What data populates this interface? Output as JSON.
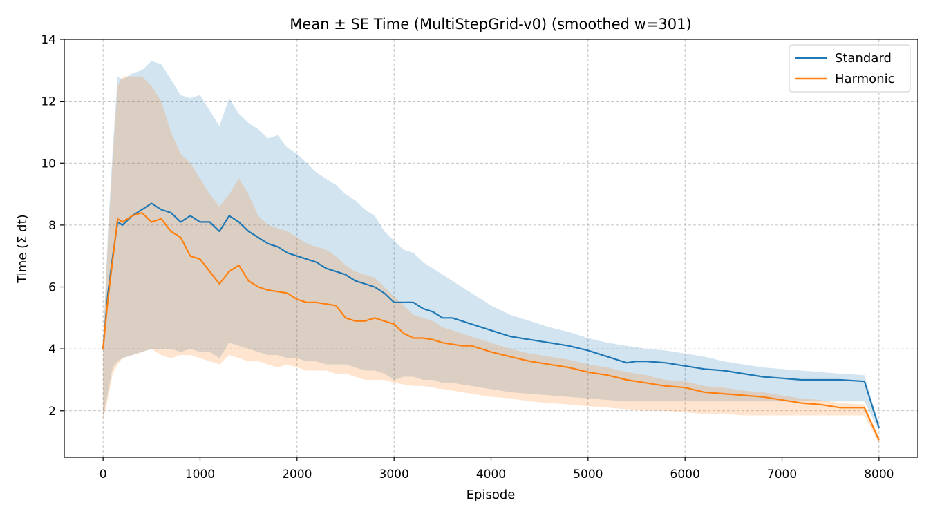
{
  "chart_data": {
    "type": "line",
    "title": "Mean ± SE Time (MultiStepGrid-v0) (smoothed w=301)",
    "xlabel": "Episode",
    "ylabel": "Time (Σ dt)",
    "xlim": [
      -400,
      8400
    ],
    "ylim": [
      0.5,
      14
    ],
    "xticks": [
      0,
      1000,
      2000,
      3000,
      4000,
      5000,
      6000,
      7000,
      8000
    ],
    "yticks": [
      2,
      4,
      6,
      8,
      10,
      12,
      14
    ],
    "grid": true,
    "legend_position": "top-right",
    "series": [
      {
        "name": "Standard",
        "color": "#1f77b4",
        "band_color": "#1f77b4",
        "x": [
          0,
          50,
          100,
          150,
          200,
          300,
          400,
          500,
          600,
          700,
          800,
          900,
          1000,
          1100,
          1200,
          1300,
          1400,
          1500,
          1600,
          1700,
          1800,
          1900,
          2000,
          2100,
          2200,
          2300,
          2400,
          2500,
          2600,
          2700,
          2800,
          2900,
          3000,
          3100,
          3200,
          3300,
          3400,
          3500,
          3600,
          3700,
          3800,
          3900,
          4000,
          4200,
          4400,
          4600,
          4800,
          5000,
          5200,
          5400,
          5500,
          5600,
          5800,
          6000,
          6200,
          6400,
          6600,
          6800,
          7000,
          7200,
          7400,
          7600,
          7850,
          8000
        ],
        "mean": [
          4.0,
          5.8,
          7.0,
          8.1,
          8.0,
          8.3,
          8.5,
          8.7,
          8.5,
          8.4,
          8.1,
          8.3,
          8.1,
          8.1,
          7.8,
          8.3,
          8.1,
          7.8,
          7.6,
          7.4,
          7.3,
          7.1,
          7.0,
          6.9,
          6.8,
          6.6,
          6.5,
          6.4,
          6.2,
          6.1,
          6.0,
          5.8,
          5.5,
          5.5,
          5.5,
          5.3,
          5.2,
          5.0,
          5.0,
          4.9,
          4.8,
          4.7,
          4.6,
          4.4,
          4.3,
          4.2,
          4.1,
          3.95,
          3.75,
          3.55,
          3.6,
          3.6,
          3.55,
          3.45,
          3.35,
          3.3,
          3.2,
          3.1,
          3.05,
          3.0,
          3.0,
          3.0,
          2.95,
          1.45
        ],
        "upper": [
          4.2,
          7.8,
          10.5,
          12.8,
          12.7,
          12.9,
          13.0,
          13.3,
          13.2,
          12.7,
          12.2,
          12.1,
          12.2,
          11.7,
          11.2,
          12.1,
          11.6,
          11.3,
          11.1,
          10.8,
          10.9,
          10.5,
          10.3,
          10.0,
          9.7,
          9.5,
          9.3,
          9.0,
          8.8,
          8.5,
          8.3,
          7.8,
          7.5,
          7.2,
          7.1,
          6.8,
          6.6,
          6.4,
          6.2,
          6.0,
          5.8,
          5.6,
          5.4,
          5.1,
          4.9,
          4.7,
          4.55,
          4.35,
          4.2,
          4.1,
          4.05,
          4.0,
          3.95,
          3.85,
          3.75,
          3.6,
          3.5,
          3.4,
          3.35,
          3.3,
          3.25,
          3.2,
          3.15,
          1.55
        ],
        "lower": [
          1.8,
          2.6,
          3.4,
          3.6,
          3.7,
          3.8,
          3.9,
          4.0,
          4.0,
          4.0,
          3.9,
          4.0,
          3.9,
          3.9,
          3.7,
          4.2,
          4.1,
          4.0,
          3.9,
          3.8,
          3.8,
          3.7,
          3.7,
          3.6,
          3.6,
          3.5,
          3.5,
          3.5,
          3.4,
          3.3,
          3.3,
          3.2,
          3.0,
          3.1,
          3.1,
          3.0,
          3.0,
          2.9,
          2.9,
          2.85,
          2.8,
          2.75,
          2.7,
          2.6,
          2.55,
          2.5,
          2.45,
          2.4,
          2.35,
          2.3,
          2.3,
          2.3,
          2.3,
          2.3,
          2.3,
          2.3,
          2.3,
          2.3,
          2.3,
          2.3,
          2.3,
          2.3,
          2.3,
          1.35
        ]
      },
      {
        "name": "Harmonic",
        "color": "#ff7f0e",
        "band_color": "#ff7f0e",
        "x": [
          0,
          50,
          100,
          150,
          200,
          300,
          400,
          500,
          600,
          700,
          800,
          900,
          1000,
          1100,
          1200,
          1300,
          1400,
          1500,
          1600,
          1700,
          1800,
          1900,
          2000,
          2100,
          2200,
          2300,
          2400,
          2500,
          2600,
          2700,
          2800,
          2900,
          3000,
          3100,
          3200,
          3300,
          3400,
          3500,
          3600,
          3700,
          3800,
          3900,
          4000,
          4200,
          4400,
          4600,
          4800,
          5000,
          5200,
          5400,
          5600,
          5800,
          6000,
          6200,
          6400,
          6600,
          6800,
          7000,
          7200,
          7400,
          7600,
          7850,
          8000
        ],
        "mean": [
          4.0,
          5.6,
          6.9,
          8.2,
          8.1,
          8.3,
          8.4,
          8.1,
          8.2,
          7.8,
          7.6,
          7.0,
          6.9,
          6.5,
          6.1,
          6.5,
          6.7,
          6.2,
          6.0,
          5.9,
          5.85,
          5.8,
          5.6,
          5.5,
          5.5,
          5.45,
          5.4,
          5.0,
          4.9,
          4.9,
          5.0,
          4.9,
          4.8,
          4.5,
          4.35,
          4.35,
          4.3,
          4.2,
          4.15,
          4.1,
          4.1,
          4.0,
          3.9,
          3.75,
          3.6,
          3.5,
          3.4,
          3.25,
          3.15,
          3.0,
          2.9,
          2.8,
          2.75,
          2.6,
          2.55,
          2.5,
          2.45,
          2.35,
          2.25,
          2.2,
          2.1,
          2.1,
          1.05
        ],
        "upper": [
          4.1,
          7.5,
          10.2,
          12.5,
          12.8,
          12.8,
          12.8,
          12.5,
          12.0,
          11.0,
          10.3,
          10.0,
          9.5,
          9.0,
          8.6,
          9.0,
          9.5,
          9.0,
          8.3,
          8.0,
          7.9,
          7.8,
          7.6,
          7.4,
          7.3,
          7.2,
          7.0,
          6.7,
          6.5,
          6.4,
          6.3,
          6.0,
          5.7,
          5.4,
          5.1,
          5.0,
          4.9,
          4.7,
          4.6,
          4.5,
          4.4,
          4.3,
          4.2,
          4.0,
          3.85,
          3.75,
          3.65,
          3.5,
          3.4,
          3.25,
          3.15,
          3.0,
          2.95,
          2.8,
          2.75,
          2.65,
          2.6,
          2.5,
          2.4,
          2.35,
          2.25,
          2.2,
          1.15
        ],
        "lower": [
          1.7,
          2.4,
          3.2,
          3.5,
          3.7,
          3.8,
          3.9,
          4.0,
          3.8,
          3.7,
          3.8,
          3.8,
          3.7,
          3.6,
          3.5,
          3.8,
          3.7,
          3.6,
          3.6,
          3.5,
          3.4,
          3.5,
          3.4,
          3.3,
          3.3,
          3.3,
          3.2,
          3.2,
          3.1,
          3.0,
          3.0,
          3.0,
          2.9,
          2.85,
          2.8,
          2.8,
          2.75,
          2.7,
          2.65,
          2.6,
          2.55,
          2.5,
          2.45,
          2.4,
          2.3,
          2.25,
          2.2,
          2.15,
          2.1,
          2.05,
          2.0,
          2.0,
          1.95,
          1.9,
          1.9,
          1.85,
          1.85,
          1.85,
          1.85,
          1.85,
          1.85,
          1.85,
          0.95
        ]
      }
    ]
  }
}
